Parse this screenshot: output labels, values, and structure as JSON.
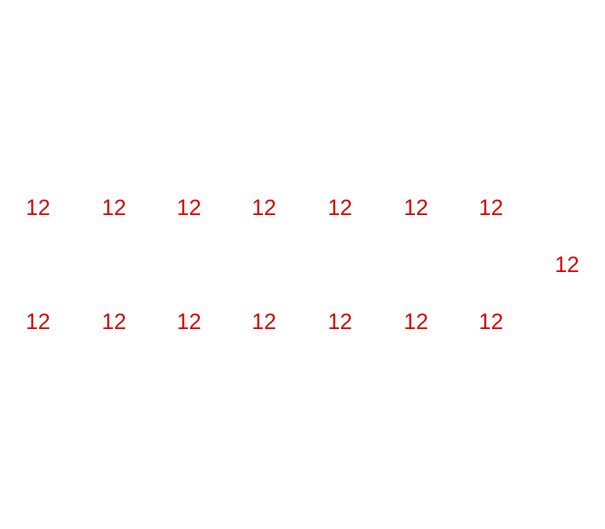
{
  "colors": {
    "background": "#ffffff",
    "label": "#e00000"
  },
  "labels": {
    "top_row": [
      "12",
      "12",
      "12",
      "12",
      "12",
      "12",
      "12"
    ],
    "middle_right": "12",
    "bottom_row": [
      "12",
      "12",
      "12",
      "12",
      "12",
      "12",
      "12"
    ]
  }
}
